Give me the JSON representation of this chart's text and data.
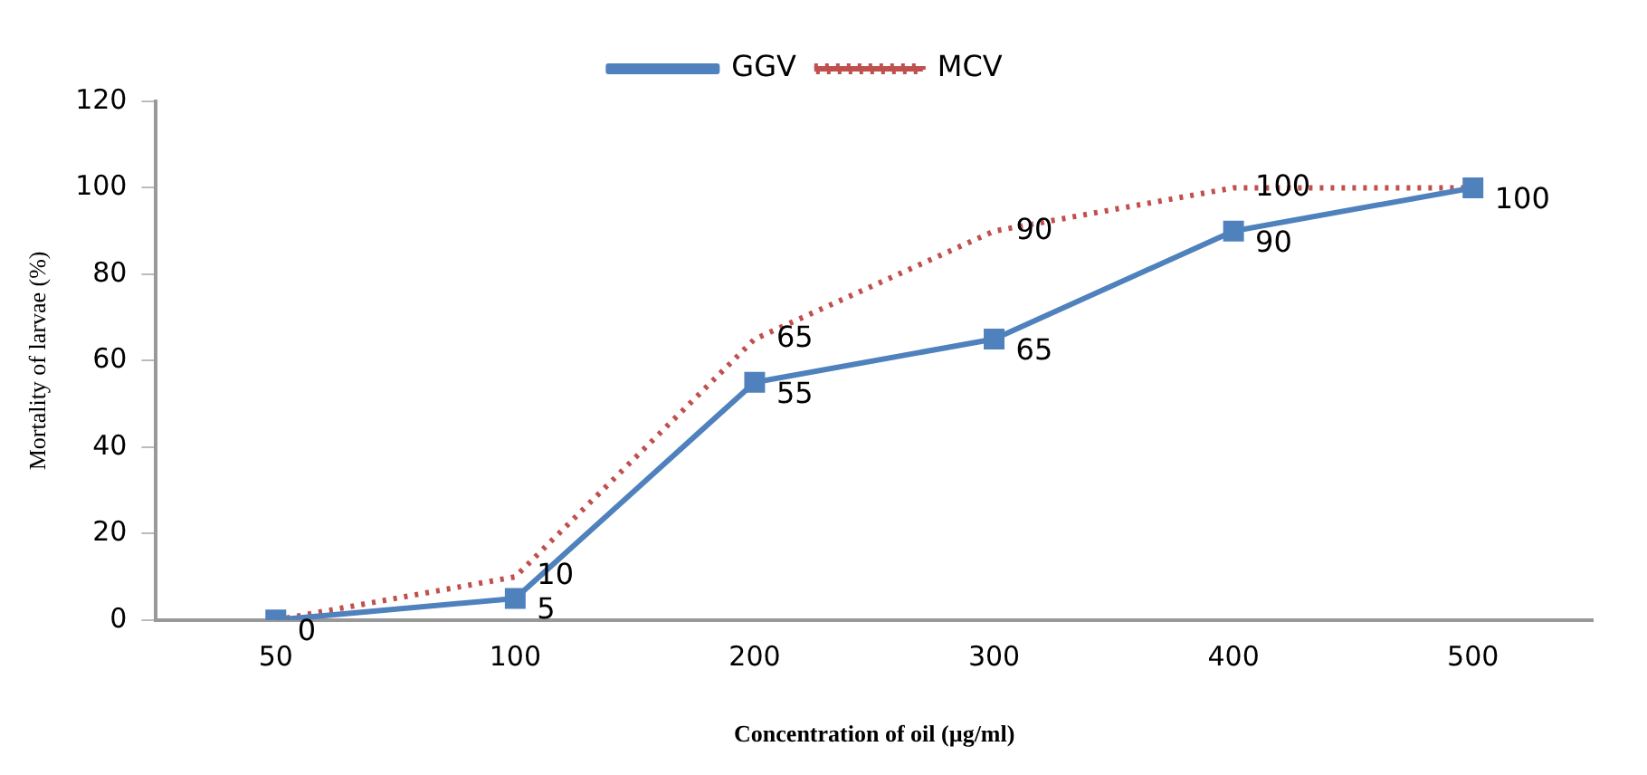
{
  "chart_data": {
    "type": "line",
    "xlabel": "Concentration of oil (µg/ml)",
    "ylabel": "Mortality of larvae (%)",
    "categories": [
      "50",
      "100",
      "200",
      "300",
      "400",
      "500"
    ],
    "series": [
      {
        "name": "GGV",
        "color": "#4f81bd",
        "values": [
          0,
          5,
          55,
          65,
          90,
          100
        ],
        "marker": "square",
        "line_style": "solid",
        "value_labels": [
          "0",
          "5",
          "55",
          "65",
          "90",
          "100"
        ]
      },
      {
        "name": "MCV",
        "color": "#c0504d",
        "values": [
          0,
          10,
          65,
          90,
          100,
          100
        ],
        "marker": "none",
        "line_style": "dotted",
        "value_labels": [
          null,
          "10",
          "65",
          "90",
          "100",
          null
        ]
      }
    ],
    "ylim": [
      0,
      120
    ],
    "yticks": [
      0,
      20,
      40,
      60,
      80,
      100,
      120
    ],
    "grid": false,
    "legend": "top"
  }
}
